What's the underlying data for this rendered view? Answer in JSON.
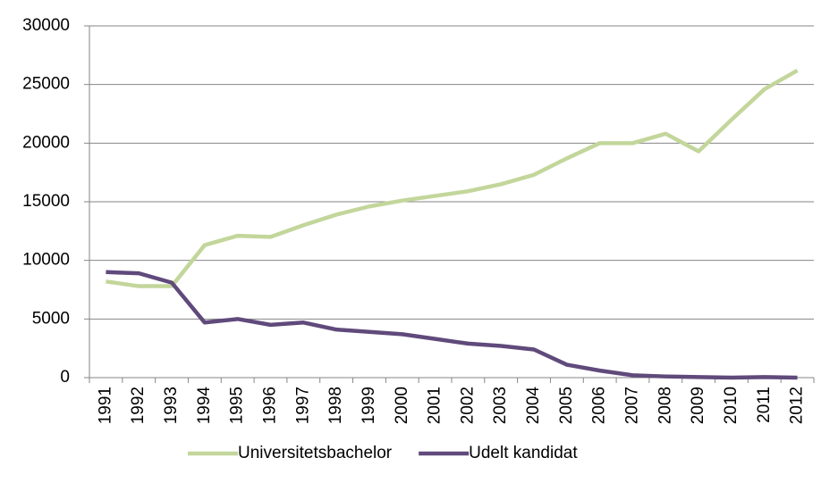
{
  "chart_data": {
    "type": "line",
    "categories": [
      "1991",
      "1992",
      "1993",
      "1994",
      "1995",
      "1996",
      "1997",
      "1998",
      "1999",
      "2000",
      "2001",
      "2002",
      "2003",
      "2004",
      "2005",
      "2006",
      "2007",
      "2008",
      "2009",
      "2010",
      "2011",
      "2012"
    ],
    "series": [
      {
        "name": "Universitetsbachelor",
        "color": "#c3d69b",
        "values": [
          8200,
          7800,
          7800,
          11300,
          12100,
          12000,
          13000,
          13900,
          14600,
          15100,
          15500,
          15900,
          16500,
          17300,
          18700,
          20000,
          20000,
          20800,
          19300,
          22000,
          24600,
          26200
        ]
      },
      {
        "name": "Udelt kandidat",
        "color": "#604a7b",
        "values": [
          9000,
          8900,
          8100,
          4700,
          5000,
          4500,
          4700,
          4100,
          3900,
          3700,
          3300,
          2900,
          2700,
          2400,
          1100,
          600,
          200,
          100,
          50,
          0,
          50,
          0
        ]
      }
    ],
    "ylim": [
      0,
      30000
    ],
    "yticks": [
      0,
      5000,
      10000,
      15000,
      20000,
      25000,
      30000
    ],
    "grid": true,
    "legend": "bottom"
  }
}
